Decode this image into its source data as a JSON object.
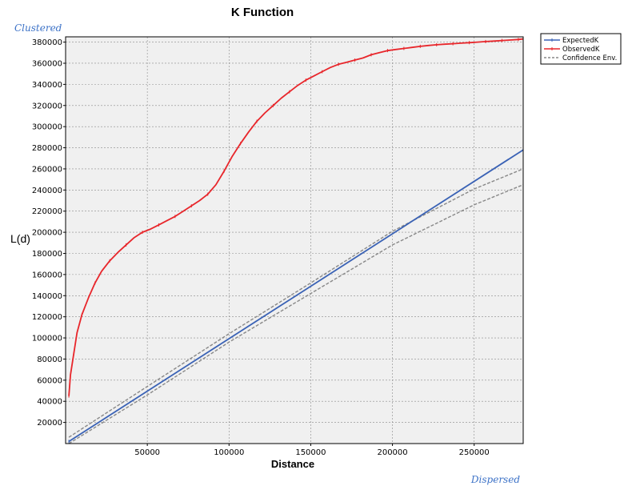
{
  "chart_data": {
    "type": "line",
    "title": "K Function",
    "xlabel": "Distance",
    "ylabel": "L(d)",
    "corner_top_label": "Clustered",
    "corner_bottom_label": "Dispersed",
    "xlim": [
      0,
      280000
    ],
    "ylim": [
      0,
      385000
    ],
    "x_ticks": [
      50000,
      100000,
      150000,
      200000,
      250000
    ],
    "x_tick_labels": [
      "50000",
      "100000",
      "150000",
      "200000",
      "250000"
    ],
    "y_ticks": [
      20000,
      40000,
      60000,
      80000,
      100000,
      120000,
      140000,
      160000,
      180000,
      200000,
      220000,
      240000,
      260000,
      280000,
      300000,
      320000,
      340000,
      360000,
      380000
    ],
    "y_tick_labels": [
      "20000",
      "40000",
      "60000",
      "80000",
      "100000",
      "120000",
      "140000",
      "160000",
      "180000",
      "200000",
      "220000",
      "240000",
      "260000",
      "280000",
      "300000",
      "320000",
      "340000",
      "360000",
      "380000"
    ],
    "grid": true,
    "legend_position": "top-right outside",
    "series": [
      {
        "name": "ExpectedK",
        "color": "#3a62b5",
        "dash": false,
        "x": [
          2000,
          280000
        ],
        "y": [
          2000,
          278000
        ]
      },
      {
        "name": "ObservedK",
        "color": "#e8262b",
        "dash": false,
        "x": [
          2000,
          3000,
          5000,
          7000,
          10000,
          14000,
          18000,
          22000,
          27000,
          32000,
          37000,
          42000,
          47000,
          52000,
          57000,
          62000,
          67000,
          72000,
          77000,
          82000,
          87000,
          92000,
          97000,
          102000,
          107000,
          112000,
          117000,
          122000,
          127000,
          132000,
          137000,
          142000,
          147000,
          152000,
          157000,
          162000,
          167000,
          172000,
          177000,
          182000,
          187000,
          192000,
          197000,
          202000,
          207000,
          212000,
          217000,
          222000,
          227000,
          232000,
          237000,
          242000,
          247000,
          252000,
          257000,
          262000,
          267000,
          272000,
          277000,
          280000
        ],
        "y": [
          45000,
          65000,
          85000,
          105000,
          122000,
          138000,
          152000,
          163000,
          173000,
          181000,
          188000,
          195000,
          200000,
          203000,
          207000,
          211000,
          215000,
          220000,
          225000,
          230000,
          236000,
          245000,
          258000,
          272000,
          284000,
          295000,
          305000,
          313000,
          320000,
          327000,
          333000,
          339000,
          344000,
          348000,
          352000,
          356000,
          359000,
          361000,
          363000,
          365000,
          368000,
          370000,
          372000,
          373000,
          374000,
          375000,
          376000,
          376800,
          377500,
          378000,
          378500,
          379000,
          379500,
          380000,
          380500,
          381000,
          381500,
          382000,
          382500,
          383000
        ]
      },
      {
        "name": "Confidence Env.",
        "color": "#888888",
        "dash": true,
        "x": [
          2000,
          50000,
          100000,
          150000,
          200000,
          250000,
          280000
        ],
        "y": [
          6000,
          54000,
          104000,
          152000,
          201000,
          241000,
          260000
        ]
      },
      {
        "name": "Confidence Env.",
        "color": "#888888",
        "dash": true,
        "x": [
          2000,
          50000,
          100000,
          150000,
          200000,
          250000,
          280000
        ],
        "y": [
          0,
          46000,
          96000,
          142000,
          188000,
          226000,
          245000
        ]
      }
    ]
  }
}
